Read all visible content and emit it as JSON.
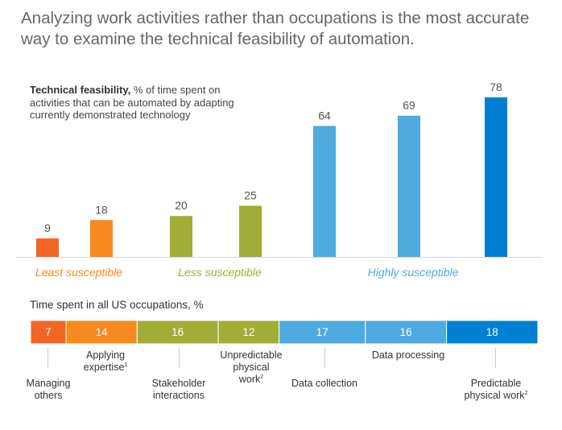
{
  "headline": "Analyzing work activities rather than occupations is the most accurate way to examine the technical feasibility of automation.",
  "chart_data": [
    {
      "type": "bar",
      "title_bold": "Technical feasibility,",
      "title_rest": " % of time spent on activities that can be automated by adapting currently demonstrated technology",
      "categories": [
        "Managing others",
        "Applying expertise",
        "Stakeholder interactions",
        "Unpredictable physical work",
        "Data collection",
        "Data processing",
        "Predictable physical work"
      ],
      "values": [
        9,
        18,
        20,
        25,
        64,
        69,
        78
      ],
      "colors": [
        "#f26522",
        "#f7891f",
        "#a2ad38",
        "#a2ad38",
        "#4eaadf",
        "#4eaadf",
        "#0080d5"
      ],
      "ylim": [
        0,
        80
      ],
      "grid": false,
      "groups": [
        {
          "label": "Least susceptible",
          "color": "#f7891f",
          "bars": [
            0,
            1
          ]
        },
        {
          "label": "Less susceptible",
          "color": "#a2ad38",
          "bars": [
            2,
            3
          ]
        },
        {
          "label": "Highly susceptible",
          "color": "#4eaadf",
          "bars": [
            4,
            5,
            6
          ]
        }
      ]
    },
    {
      "type": "stacked-bar",
      "title": "Time spent in all US occupations, %",
      "categories": [
        "Managing others",
        "Applying expertise",
        "Stakeholder interactions",
        "Unpredictable physical work",
        "Data collection",
        "Data processing",
        "Predictable physical work"
      ],
      "values": [
        7,
        14,
        16,
        12,
        17,
        16,
        18
      ],
      "colors": [
        "#f26522",
        "#f7891f",
        "#a2ad38",
        "#a2ad38",
        "#4eaadf",
        "#4eaadf",
        "#0080d5"
      ]
    }
  ],
  "category_labels": [
    {
      "text": "Managing others",
      "sup": ""
    },
    {
      "text": "Applying expertise",
      "sup": "1"
    },
    {
      "text": "Stakeholder interactions",
      "sup": ""
    },
    {
      "text": "Unpredictable physical work",
      "sup": "2"
    },
    {
      "text": "Data collection",
      "sup": ""
    },
    {
      "text": "Data processing",
      "sup": ""
    },
    {
      "text": "Predictable physical work",
      "sup": "2"
    }
  ]
}
